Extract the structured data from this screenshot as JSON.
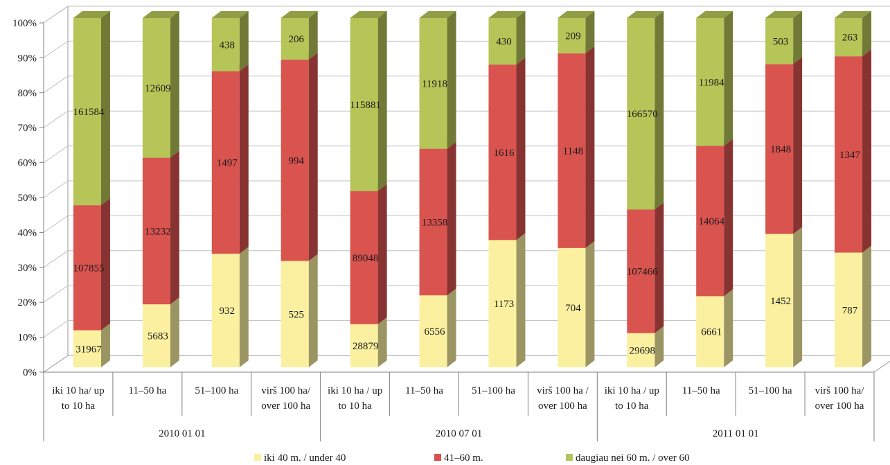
{
  "chart_data": {
    "type": "bar",
    "stacked": "100%",
    "three_d": true,
    "grid": true,
    "legend_position": "bottom",
    "yticks": [
      "0%",
      "10%",
      "20%",
      "30%",
      "40%",
      "50%",
      "60%",
      "70%",
      "80%",
      "90%",
      "100%"
    ],
    "groups": [
      "2010 01 01",
      "2010 07 01",
      "2011 01 01"
    ],
    "categories": [
      [
        "iki 10 ha/ up",
        "to 10 ha"
      ],
      [
        "11–50 ha"
      ],
      [
        "51–100 ha"
      ],
      [
        "virš 100 ha/",
        "over 100 ha"
      ],
      [
        "iki 10 ha / up",
        "to 10 ha"
      ],
      [
        "11–50 ha"
      ],
      [
        "51–100 ha"
      ],
      [
        "virš 100 ha /",
        "over 100 ha"
      ],
      [
        "iki 10 ha / up",
        "to 10 ha"
      ],
      [
        "11–50 ha"
      ],
      [
        "51–100 ha"
      ],
      [
        "virš 100 ha/",
        "over 100 ha"
      ]
    ],
    "series": [
      {
        "name": "iki 40 m. / under 40",
        "color": "#FAF0A0",
        "values": [
          31967,
          5683,
          932,
          525,
          28879,
          6556,
          1173,
          704,
          29698,
          6661,
          1452,
          787
        ]
      },
      {
        "name": "41–60 m.",
        "color": "#D9534F",
        "values": [
          107855,
          13232,
          1497,
          994,
          89048,
          13358,
          1616,
          1148,
          107466,
          14064,
          1848,
          1347
        ]
      },
      {
        "name": "daugiau nei 60 m. / over 60",
        "color": "#B5C557",
        "values": [
          161584,
          12609,
          438,
          206,
          115881,
          11918,
          430,
          209,
          166570,
          11984,
          503,
          263
        ]
      }
    ]
  }
}
